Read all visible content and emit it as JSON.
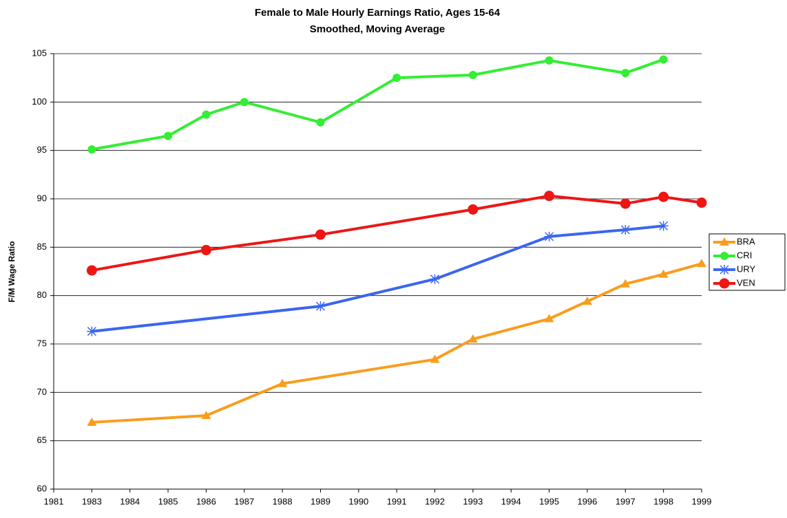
{
  "chart_data": {
    "type": "line",
    "title": "Female to Male Hourly Earnings Ratio, Ages 15-64",
    "subtitle": "Smoothed, Moving Average",
    "y_label": "F/M Wage Ratio",
    "categories": [
      "1981",
      "1983",
      "1984",
      "1985",
      "1986",
      "1987",
      "1988",
      "1989",
      "1990",
      "1991",
      "1992",
      "1993",
      "1994",
      "1995",
      "1996",
      "1997",
      "1998",
      "1999"
    ],
    "ylim": [
      60,
      105
    ],
    "yticks": [
      60,
      65,
      70,
      75,
      80,
      85,
      90,
      95,
      100,
      105
    ],
    "grid": true,
    "legend": "right",
    "series": [
      {
        "name": "BRA",
        "color": "#f99d1c",
        "marker": "triangle",
        "x": [
          "1983",
          "1986",
          "1988",
          "1992",
          "1993",
          "1995",
          "1996",
          "1997",
          "1998",
          "1999"
        ],
        "values": [
          66.9,
          67.6,
          70.9,
          73.4,
          75.5,
          77.6,
          79.4,
          81.2,
          82.2,
          83.3
        ]
      },
      {
        "name": "CRI",
        "color": "#33ee33",
        "marker": "circle",
        "x": [
          "1983",
          "1985",
          "1986",
          "1987",
          "1989",
          "1991",
          "1993",
          "1995",
          "1997",
          "1998"
        ],
        "values": [
          95.1,
          96.5,
          98.7,
          100.0,
          97.9,
          102.5,
          102.8,
          104.3,
          103.0,
          104.4
        ]
      },
      {
        "name": "URY",
        "color": "#3a66f0",
        "marker": "asterisk",
        "x": [
          "1983",
          "1989",
          "1992",
          "1995",
          "1997",
          "1998"
        ],
        "values": [
          76.3,
          78.9,
          81.7,
          86.1,
          86.8,
          87.2
        ]
      },
      {
        "name": "VEN",
        "color": "#ee1515",
        "marker": "bigcircle",
        "x": [
          "1983",
          "1986",
          "1989",
          "1993",
          "1995",
          "1997",
          "1998",
          "1999"
        ],
        "values": [
          82.6,
          84.7,
          86.3,
          88.9,
          90.3,
          89.5,
          90.2,
          89.6
        ]
      }
    ]
  }
}
